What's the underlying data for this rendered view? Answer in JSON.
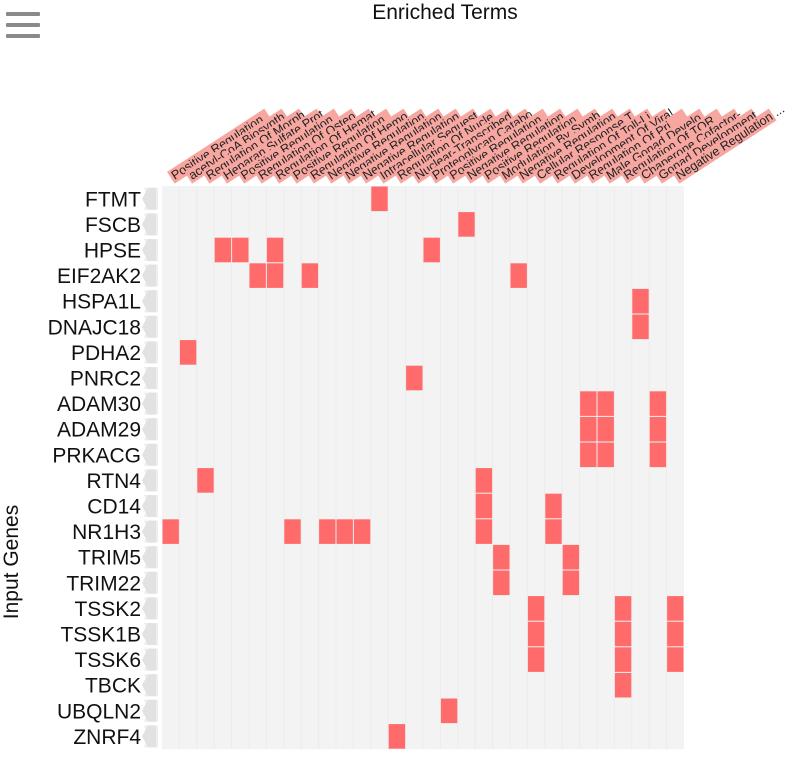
{
  "menu": {
    "icon": "hamburger-menu-icon"
  },
  "colors": {
    "hit": "#ff6b6b",
    "cell_bg": "#f3f3f3",
    "label_bg": "#f7a6a0",
    "row_arrow": "#eeeeee"
  },
  "chart_data": {
    "type": "heatmap",
    "title": "Enriched Terms",
    "ylabel": "Input Genes",
    "columns": [
      "Positive Regulation ...",
      "acetyl-CoA Biosynth...",
      "Regulation Of Morph...",
      "Heparan Sulfate Prot...",
      "Positive Regulation ...",
      "Regulation Of Osteo...",
      "Regulation Of Hemat...",
      "Positive Regulation ...",
      "Regulation Of Hemo...",
      "Negative Regulation ...",
      "Negative Regulation ...",
      "Negative Regulation ...",
      "Intracellular Sequest...",
      "Regulation Of Nucle...",
      "Nuclear-Transcribed ...",
      "Proteoglycan Catabo...",
      "Positive Regulation ...",
      "Negative Regulation ...",
      "Positive Regulation ...",
      "Modulation By Symb...",
      "Negative Regulation ...",
      "Cellular Response T...",
      "Regulation Of Toll-Li...",
      "Development Of Viral...",
      "Regulation Of Pri...",
      "Male Gonad Develo...",
      "Regulation Of TOR ...",
      "Chaperone Cofactor-...",
      "Gonad Development ...",
      "Negative Regulation ..."
    ],
    "rows": [
      "FTMT",
      "FSCB",
      "HPSE",
      "EIF2AK2",
      "HSPA1L",
      "DNAJC18",
      "PDHA2",
      "PNRC2",
      "ADAM30",
      "ADAM29",
      "PRKACG",
      "RTN4",
      "CD14",
      "NR1H3",
      "TRIM5",
      "TRIM22",
      "TSSK2",
      "TSSK1B",
      "TSSK6",
      "TBCK",
      "UBQLN2",
      "ZNRF4"
    ],
    "hits": [
      [
        12
      ],
      [
        17
      ],
      [
        3,
        4,
        6,
        15
      ],
      [
        5,
        6,
        8,
        20
      ],
      [
        27
      ],
      [
        27
      ],
      [
        1
      ],
      [
        14
      ],
      [
        24,
        25,
        28
      ],
      [
        24,
        25,
        28
      ],
      [
        24,
        25,
        28
      ],
      [
        2,
        18
      ],
      [
        18,
        22
      ],
      [
        0,
        7,
        9,
        10,
        11,
        18,
        22
      ],
      [
        19,
        23
      ],
      [
        19,
        23
      ],
      [
        21,
        26,
        29
      ],
      [
        21,
        26,
        29
      ],
      [
        21,
        26,
        29
      ],
      [
        26
      ],
      [
        16
      ],
      [
        13
      ]
    ],
    "grid": false
  }
}
